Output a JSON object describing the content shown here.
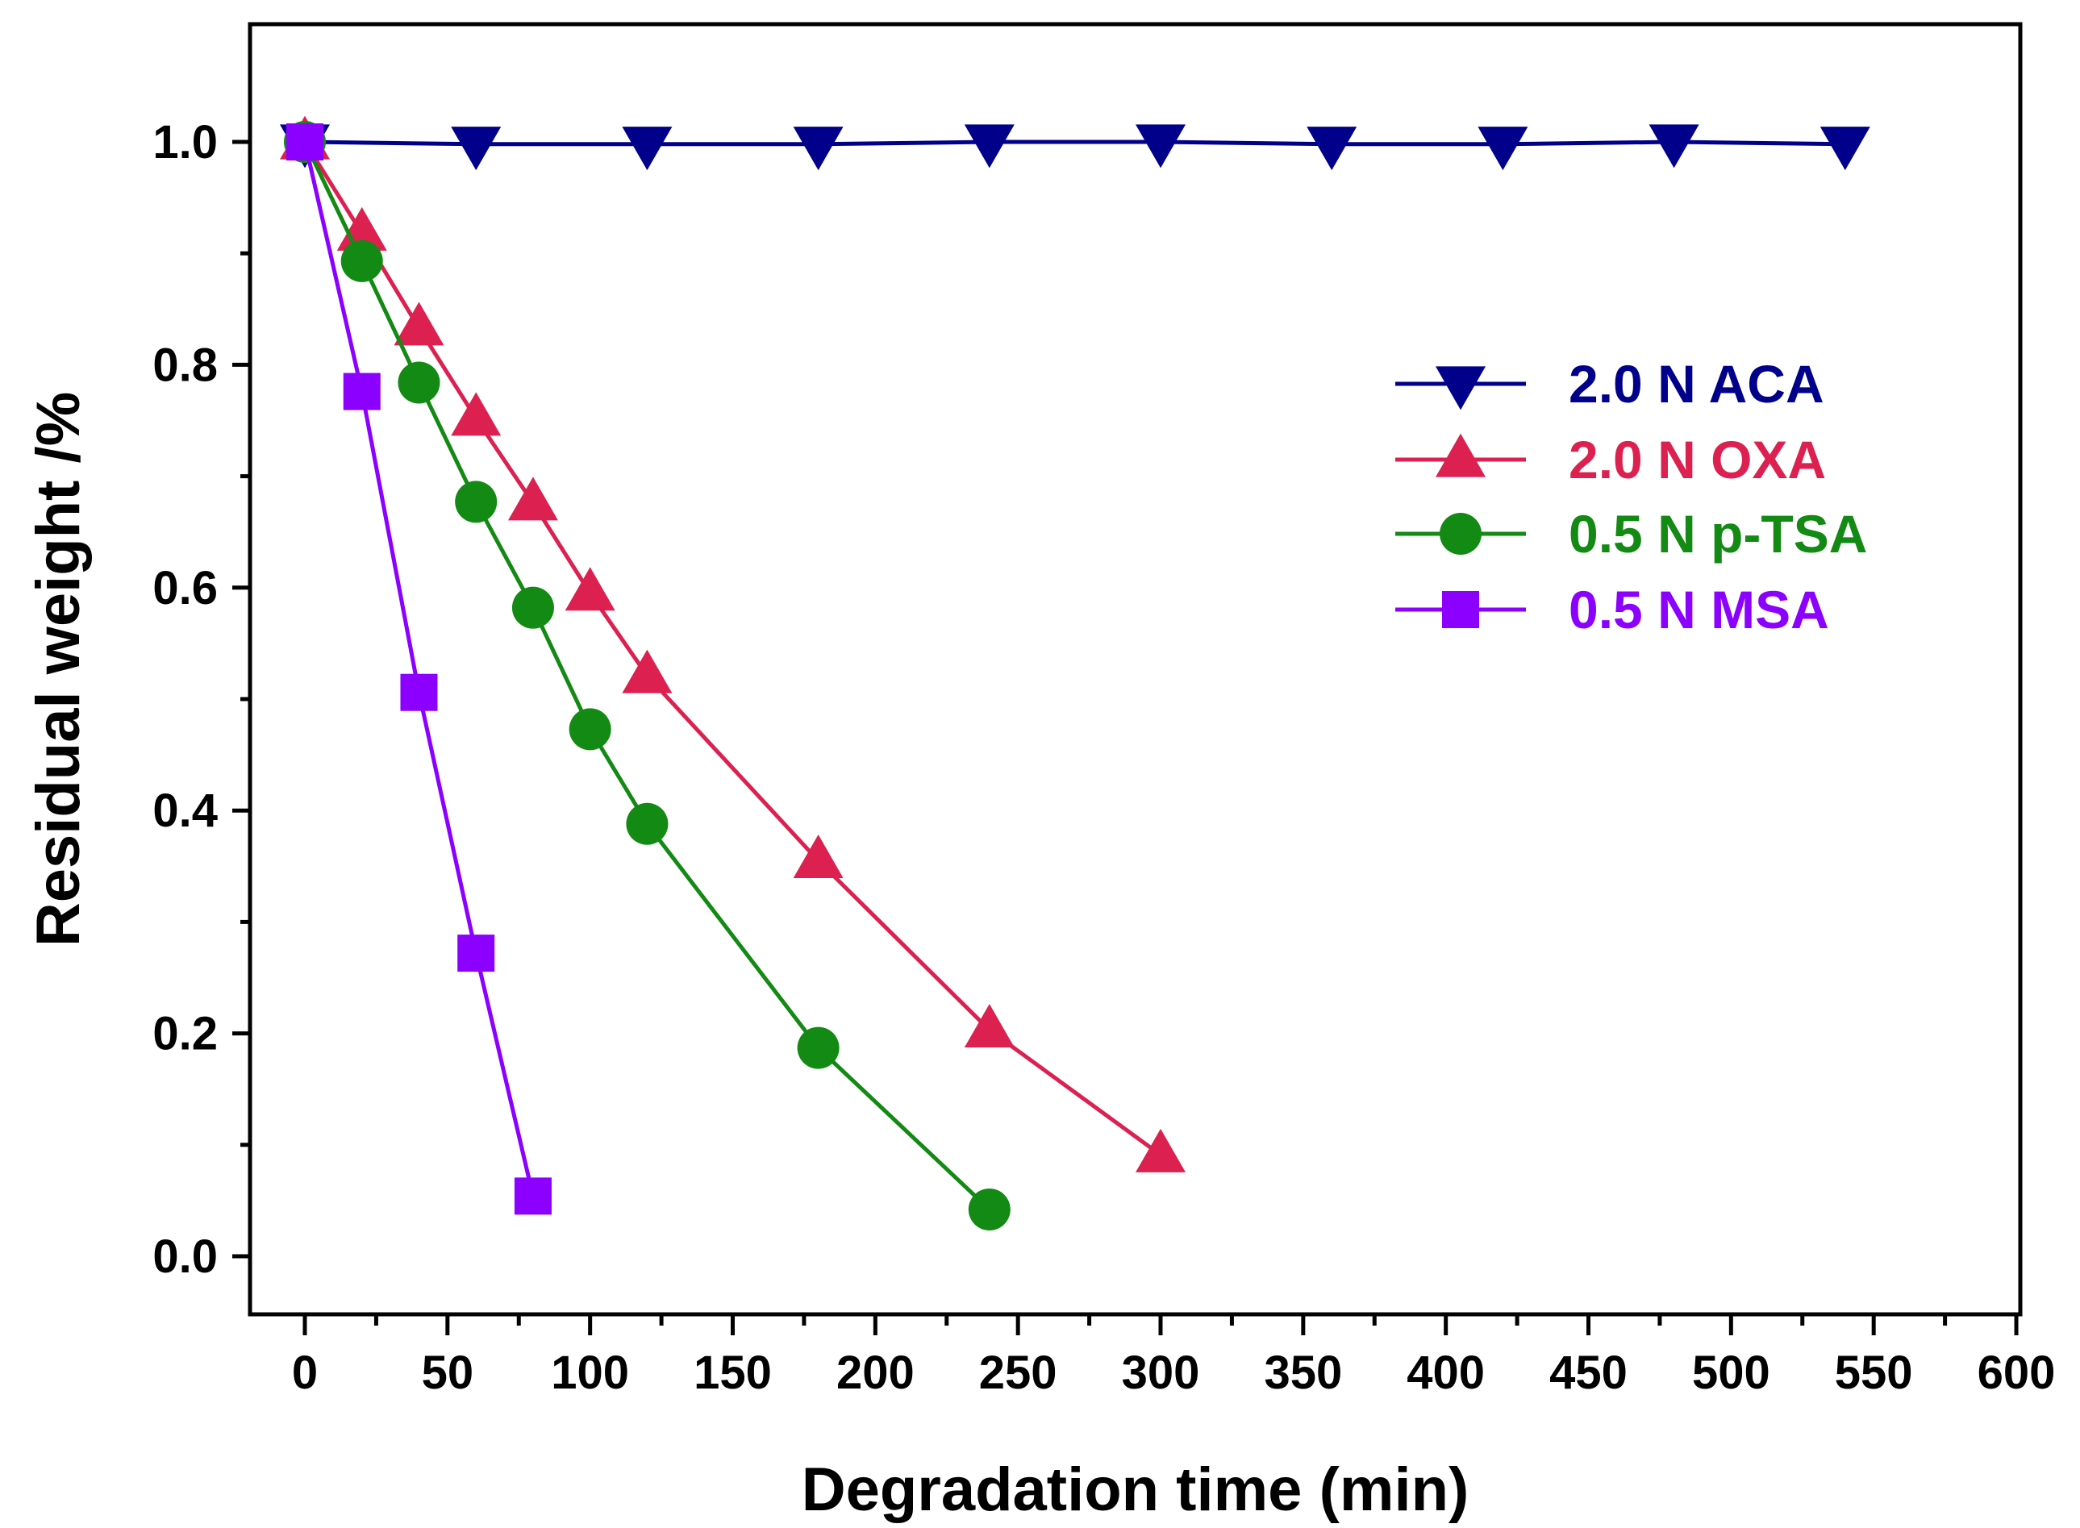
{
  "chart_data": {
    "type": "line",
    "title": "",
    "xlabel": "Degradation time (min)",
    "ylabel": "Residual weight /%",
    "xlim": [
      -20,
      600
    ],
    "ylim": [
      -0.1,
      1.1
    ],
    "xticks": [
      0,
      50,
      100,
      150,
      200,
      250,
      300,
      350,
      400,
      450,
      500,
      550,
      600
    ],
    "xtick_labels": [
      "0",
      "50",
      "100",
      "150",
      "200",
      "250",
      "300",
      "350",
      "400",
      "450",
      "500",
      "550",
      "600"
    ],
    "yticks": [
      0.0,
      0.2,
      0.4,
      0.6,
      0.8,
      1.0
    ],
    "ytick_labels": [
      "0.0",
      "0.2",
      "0.4",
      "0.6",
      "0.8",
      "1.0"
    ],
    "grid": false,
    "legend_position": "top-right",
    "series": [
      {
        "name": "2.0 N ACA",
        "color": "#00008B",
        "marker": "triangle-down",
        "x": [
          0,
          60,
          120,
          180,
          240,
          300,
          360,
          420,
          480,
          540
        ],
        "y": [
          1.0,
          0.998,
          0.998,
          0.998,
          1.0,
          1.0,
          0.998,
          0.998,
          1.0,
          0.998
        ]
      },
      {
        "name": "2.0 N OXA",
        "color": "#DC2050",
        "marker": "triangle-up",
        "x": [
          0,
          20,
          40,
          60,
          80,
          100,
          120,
          180,
          240,
          300
        ],
        "y": [
          1.0,
          0.918,
          0.833,
          0.752,
          0.676,
          0.595,
          0.521,
          0.355,
          0.203,
          0.091
        ]
      },
      {
        "name": "0.5 N p-TSA",
        "color": "#138A13",
        "marker": "circle",
        "x": [
          0,
          20,
          40,
          60,
          80,
          100,
          120,
          180,
          240
        ],
        "y": [
          1.0,
          0.893,
          0.784,
          0.677,
          0.582,
          0.473,
          0.388,
          0.187,
          0.042
        ]
      },
      {
        "name": "0.5 N MSA",
        "color": "#8B00FF",
        "marker": "square",
        "x": [
          0,
          20,
          40,
          60,
          80
        ],
        "y": [
          1.0,
          0.776,
          0.506,
          0.272,
          0.054
        ]
      }
    ]
  }
}
